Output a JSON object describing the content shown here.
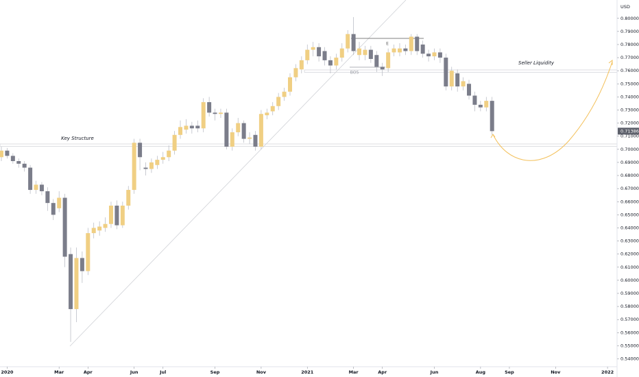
{
  "chart_data": {
    "type": "candlestick",
    "currency": "USD",
    "up_color": "#f0cf83",
    "down_color": "#7b7d8a",
    "ylim": [
      0.534,
      0.814
    ],
    "yticks": [
      {
        "value": 0.54,
        "label": "0.54000"
      },
      {
        "value": 0.55,
        "label": "0.55000"
      },
      {
        "value": 0.56,
        "label": "0.56000"
      },
      {
        "value": 0.57,
        "label": "0.57000"
      },
      {
        "value": 0.58,
        "label": "0.58000"
      },
      {
        "value": 0.59,
        "label": "0.59000"
      },
      {
        "value": 0.6,
        "label": "0.60000"
      },
      {
        "value": 0.61,
        "label": "0.61000"
      },
      {
        "value": 0.62,
        "label": "0.62000"
      },
      {
        "value": 0.63,
        "label": "0.63000"
      },
      {
        "value": 0.64,
        "label": "0.64000"
      },
      {
        "value": 0.65,
        "label": "0.65000"
      },
      {
        "value": 0.66,
        "label": "0.66000"
      },
      {
        "value": 0.67,
        "label": "0.67000"
      },
      {
        "value": 0.68,
        "label": "0.68000"
      },
      {
        "value": 0.69,
        "label": "0.69000"
      },
      {
        "value": 0.7,
        "label": "0.70000"
      },
      {
        "value": 0.71,
        "label": "0.71000"
      },
      {
        "value": 0.72,
        "label": "0.72000"
      },
      {
        "value": 0.73,
        "label": "0.73000"
      },
      {
        "value": 0.74,
        "label": "0.74000"
      },
      {
        "value": 0.75,
        "label": "0.75000"
      },
      {
        "value": 0.76,
        "label": "0.76000"
      },
      {
        "value": 0.77,
        "label": "0.77000"
      },
      {
        "value": 0.78,
        "label": "0.78000"
      },
      {
        "value": 0.79,
        "label": "0.79000"
      },
      {
        "value": 0.8,
        "label": "0.80000"
      }
    ],
    "categories": [
      null,
      "2020",
      null,
      null,
      null,
      null,
      null,
      null,
      null,
      null,
      "Mar",
      null,
      null,
      null,
      null,
      "Apr",
      null,
      null,
      null,
      null,
      null,
      null,
      null,
      "Jun",
      null,
      null,
      null,
      null,
      "Jul",
      null,
      null,
      null,
      null,
      null,
      null,
      null,
      null,
      "Sep",
      null,
      null,
      null,
      null,
      null,
      null,
      null,
      "Nov",
      null,
      null,
      null,
      null,
      null,
      null,
      null,
      "2021",
      null,
      null,
      null,
      null,
      null,
      null,
      null,
      "Mar",
      null,
      null,
      null,
      null,
      "Apr",
      null,
      null,
      null,
      null,
      null,
      null,
      null,
      null,
      "Jun",
      null,
      null,
      null,
      null,
      null,
      null,
      null,
      "Aug",
      null,
      null,
      null,
      null,
      "Sep",
      null,
      null,
      null,
      null,
      null,
      null,
      null,
      "Nov",
      null,
      null,
      null,
      null,
      null,
      null,
      null,
      null,
      "2022"
    ],
    "open": [
      0.694,
      0.699,
      0.695,
      0.691,
      0.689,
      0.686,
      0.669,
      0.673,
      0.668,
      0.659,
      0.655,
      0.663,
      0.62,
      0.578,
      0.617,
      0.607,
      0.636,
      0.638,
      0.64,
      0.643,
      0.657,
      0.642,
      0.657,
      0.669,
      0.705,
      0.686,
      0.685,
      0.688,
      0.692,
      0.694,
      0.699,
      0.711,
      0.715,
      0.718,
      0.718,
      0.716,
      0.736,
      0.728,
      0.727,
      0.728,
      0.702,
      0.713,
      0.72,
      0.708,
      0.711,
      0.702,
      0.726,
      0.729,
      0.733,
      0.74,
      0.744,
      0.755,
      0.761,
      0.768,
      0.776,
      0.778,
      0.775,
      0.768,
      0.764,
      0.77,
      0.777,
      0.788,
      0.772,
      0.772,
      0.776,
      0.772,
      0.763,
      0.762,
      0.774,
      0.774,
      0.777,
      0.775,
      0.786,
      0.78,
      0.773,
      0.771,
      0.774,
      0.77,
      0.748,
      0.758,
      0.748,
      0.75,
      0.741,
      0.734,
      0.732,
      0.737,
      null,
      null,
      null,
      null,
      null,
      null,
      null,
      null,
      null,
      null,
      null,
      null,
      null,
      null,
      null,
      null,
      null,
      null,
      null,
      null
    ],
    "high": [
      0.702,
      0.701,
      0.697,
      0.693,
      0.691,
      0.688,
      0.676,
      0.675,
      0.671,
      0.662,
      0.668,
      0.666,
      0.625,
      0.625,
      0.622,
      0.64,
      0.644,
      0.645,
      0.648,
      0.66,
      0.661,
      0.66,
      0.672,
      0.708,
      0.708,
      0.69,
      0.693,
      0.695,
      0.698,
      0.703,
      0.714,
      0.722,
      0.723,
      0.721,
      0.722,
      0.739,
      0.74,
      0.731,
      0.731,
      0.731,
      0.716,
      0.724,
      0.722,
      0.713,
      0.714,
      0.73,
      0.731,
      0.736,
      0.743,
      0.747,
      0.758,
      0.765,
      0.771,
      0.78,
      0.782,
      0.781,
      0.778,
      0.771,
      0.773,
      0.781,
      0.791,
      0.801,
      0.782,
      0.779,
      0.779,
      0.775,
      0.766,
      0.777,
      0.78,
      0.781,
      0.78,
      0.788,
      0.788,
      0.783,
      0.776,
      0.777,
      0.777,
      0.773,
      0.763,
      0.761,
      0.755,
      0.753,
      0.744,
      0.737,
      0.74,
      0.74,
      null,
      null,
      null,
      null,
      null,
      null,
      null,
      null,
      null,
      null,
      null,
      null,
      null,
      null,
      null,
      null,
      null,
      null,
      null,
      null
    ],
    "low": [
      0.691,
      0.693,
      0.689,
      0.686,
      0.683,
      0.666,
      0.666,
      0.665,
      0.653,
      0.646,
      0.652,
      0.61,
      0.553,
      0.568,
      0.598,
      0.604,
      0.632,
      0.634,
      0.637,
      0.64,
      0.639,
      0.64,
      0.654,
      0.666,
      0.684,
      0.68,
      0.682,
      0.685,
      0.689,
      0.691,
      0.696,
      0.708,
      0.712,
      0.712,
      0.713,
      0.713,
      0.725,
      0.722,
      0.724,
      0.7,
      0.699,
      0.71,
      0.705,
      0.704,
      0.699,
      0.7,
      0.723,
      0.726,
      0.73,
      0.737,
      0.741,
      0.752,
      0.758,
      0.765,
      0.771,
      0.767,
      0.764,
      0.758,
      0.761,
      0.767,
      0.774,
      0.772,
      0.768,
      0.768,
      0.766,
      0.759,
      0.756,
      0.759,
      0.771,
      0.771,
      0.772,
      0.772,
      0.772,
      0.77,
      0.767,
      0.768,
      0.766,
      0.745,
      0.745,
      0.744,
      0.745,
      0.738,
      0.729,
      0.729,
      0.729,
      0.711,
      null,
      null,
      null,
      null,
      null,
      null,
      null,
      null,
      null,
      null,
      null,
      null,
      null,
      null,
      null,
      null,
      null,
      null,
      null,
      null
    ],
    "close": [
      0.699,
      0.695,
      0.691,
      0.689,
      0.686,
      0.669,
      0.673,
      0.668,
      0.659,
      0.65,
      0.663,
      0.618,
      0.578,
      0.617,
      0.607,
      0.636,
      0.64,
      0.641,
      0.643,
      0.657,
      0.642,
      0.657,
      0.669,
      0.705,
      0.694,
      0.685,
      0.69,
      0.692,
      0.694,
      0.699,
      0.711,
      0.717,
      0.718,
      0.716,
      0.716,
      0.736,
      0.728,
      0.727,
      0.728,
      0.702,
      0.713,
      0.72,
      0.708,
      0.709,
      0.702,
      0.727,
      0.728,
      0.733,
      0.74,
      0.744,
      0.755,
      0.762,
      0.768,
      0.776,
      0.778,
      0.771,
      0.768,
      0.764,
      0.77,
      0.777,
      0.788,
      0.775,
      0.777,
      0.776,
      0.769,
      0.763,
      0.761,
      0.774,
      0.777,
      0.777,
      0.775,
      0.786,
      0.775,
      0.773,
      0.771,
      0.774,
      0.77,
      0.748,
      0.76,
      0.748,
      0.752,
      0.741,
      0.734,
      0.732,
      0.737,
      0.71386,
      null,
      null,
      null,
      null,
      null,
      null,
      null,
      null,
      null,
      null,
      null,
      null,
      null,
      null,
      null,
      null,
      null,
      null,
      null,
      null
    ],
    "annotations": [
      "Key Structure",
      "Seller Liquidity",
      "BOS",
      "E"
    ]
  }
}
